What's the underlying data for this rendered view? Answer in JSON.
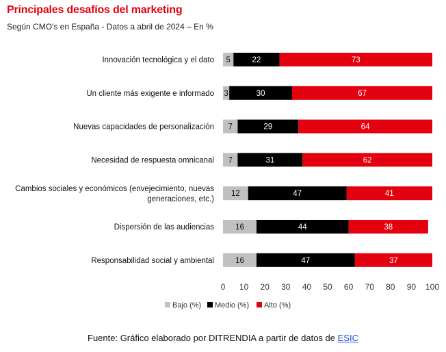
{
  "title": "Principales desafíos del marketing",
  "subtitle": "Según CMO's en España - Datos a abril de 2024 – En %",
  "source": {
    "text": "Fuente: Gráfico elaborado por DITRENDIA a partir de datos de ",
    "link_text": "ESIC"
  },
  "colors": {
    "bajo": "#c0c0c0",
    "medio": "#000000",
    "alto": "#e3000f",
    "title": "#e3000f"
  },
  "chart_data": {
    "type": "bar",
    "orientation": "horizontal",
    "stacked": true,
    "categories": [
      "Innovación tecnológica y el dato",
      "Un cliente más exigente e informado",
      "Nuevas capacidades de personalización",
      "Necesidad de respuesta omnicanal",
      "Cambios sociales y económicos (envejecimiento, nuevas generaciones, etc.)",
      "Dispersión de las audiencias",
      "Responsabilidad social y ambiental"
    ],
    "series": [
      {
        "name": "Bajo (%)",
        "values": [
          5,
          3,
          7,
          7,
          12,
          16,
          16
        ]
      },
      {
        "name": "Medio (%)",
        "values": [
          22,
          30,
          29,
          31,
          47,
          44,
          47
        ]
      },
      {
        "name": "Alto (%)",
        "values": [
          73,
          67,
          64,
          62,
          41,
          38,
          37
        ]
      }
    ],
    "xlim": [
      0,
      100
    ],
    "xticks": [
      0,
      10,
      20,
      30,
      40,
      50,
      60,
      70,
      80,
      90,
      100
    ],
    "grid": false,
    "legend_position": "bottom"
  }
}
